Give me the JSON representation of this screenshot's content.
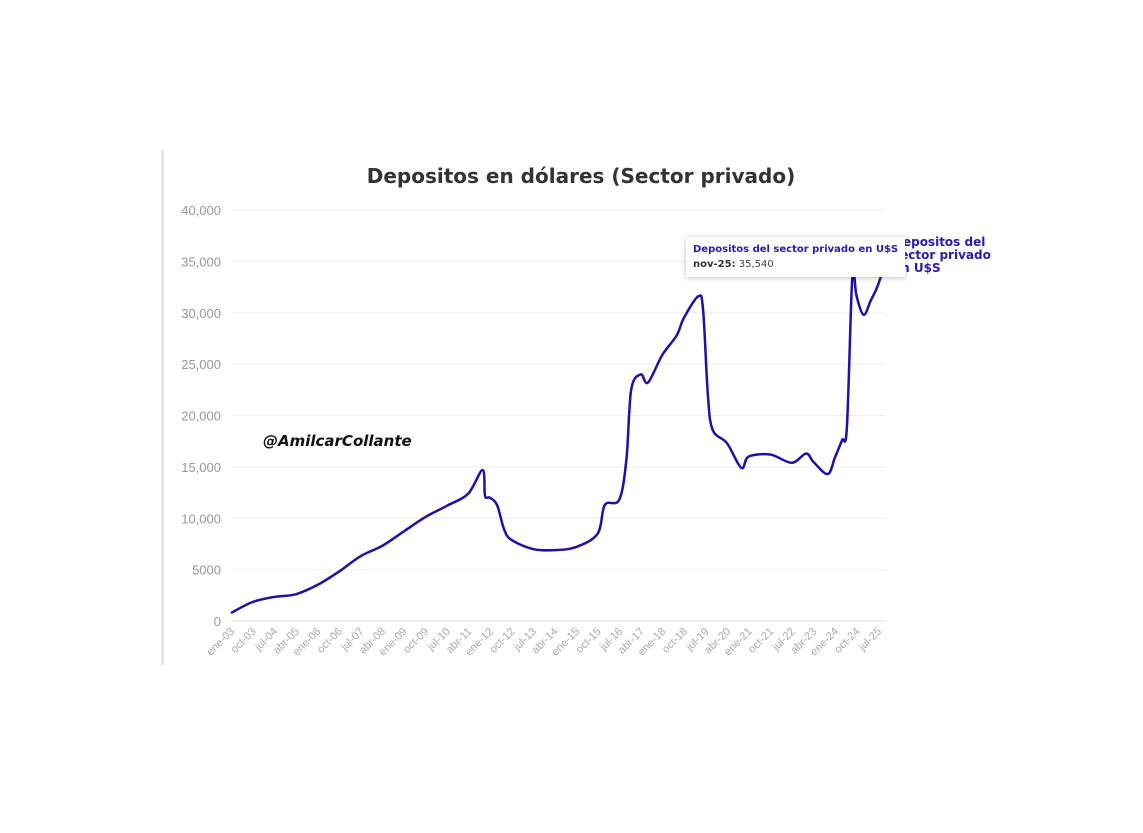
{
  "chart_data": {
    "type": "line",
    "title": "Depositos en dólares (Sector privado)",
    "xlabel": "",
    "ylabel": "",
    "ylim": [
      0,
      40000
    ],
    "yticks": [
      "0",
      "5000",
      "10,000",
      "15,000",
      "20,000",
      "25,000",
      "30,000",
      "35,000",
      "40,000"
    ],
    "ytick_values": [
      0,
      5000,
      10000,
      15000,
      20000,
      25000,
      30000,
      35000,
      40000
    ],
    "xticks": [
      "ene-03",
      "oct-03",
      "jul-04",
      "abr-05",
      "ene-06",
      "oct-06",
      "jul-07",
      "abr-08",
      "ene-09",
      "oct-09",
      "jul-10",
      "abr-11",
      "ene-12",
      "oct-12",
      "jul-13",
      "abr-14",
      "ene-15",
      "oct-15",
      "jul-16",
      "abr-17",
      "ene-18",
      "oct-18",
      "jul-19",
      "abr-20",
      "ene-21",
      "oct-21",
      "jul-22",
      "abr-23",
      "ene-24",
      "oct-24",
      "jul-25"
    ],
    "grid": true,
    "series": [
      {
        "name": "Depositos del sector privado en U$S",
        "color": "#2010a8",
        "x": [
          "ene-03",
          "oct-03",
          "jul-04",
          "abr-05",
          "ene-06",
          "oct-06",
          "jul-07",
          "abr-08",
          "ene-09",
          "oct-09",
          "jul-10",
          "abr-11",
          "oct-11",
          "nov-11",
          "ene-12",
          "abr-12",
          "jul-12",
          "oct-12",
          "jul-13",
          "abr-14",
          "ene-15",
          "oct-15",
          "ene-16",
          "jul-16",
          "oct-16",
          "dic-16",
          "abr-17",
          "jul-17",
          "ene-18",
          "jul-18",
          "oct-18",
          "abr-19",
          "jun-19",
          "ago-19",
          "oct-19",
          "abr-20",
          "oct-20",
          "ene-21",
          "oct-21",
          "jul-22",
          "ene-23",
          "abr-23",
          "oct-23",
          "ene-24",
          "abr-24",
          "jun-24",
          "ago-24",
          "sep-24",
          "oct-24",
          "ene-25",
          "abr-25",
          "jul-25",
          "nov-25"
        ],
        "y": [
          780,
          1850,
          2340,
          2600,
          3500,
          4800,
          6300,
          7300,
          8700,
          10100,
          11200,
          12400,
          14700,
          12200,
          12000,
          11300,
          8900,
          7900,
          7000,
          6900,
          7200,
          8500,
          11300,
          11800,
          15700,
          22500,
          24000,
          23200,
          25900,
          27800,
          29500,
          31600,
          30300,
          22000,
          18600,
          17300,
          14900,
          16000,
          16200,
          15400,
          16300,
          15500,
          14300,
          15900,
          17600,
          18800,
          32200,
          33700,
          31700,
          29800,
          31200,
          32700,
          35540
        ]
      }
    ],
    "end_label": "Depositos del sector privado en U$S",
    "tooltip": {
      "title": "Depositos del sector privado en U$S",
      "label": "nov-25:",
      "value": "35,540"
    },
    "annotation": "@AmilcarCollante"
  }
}
